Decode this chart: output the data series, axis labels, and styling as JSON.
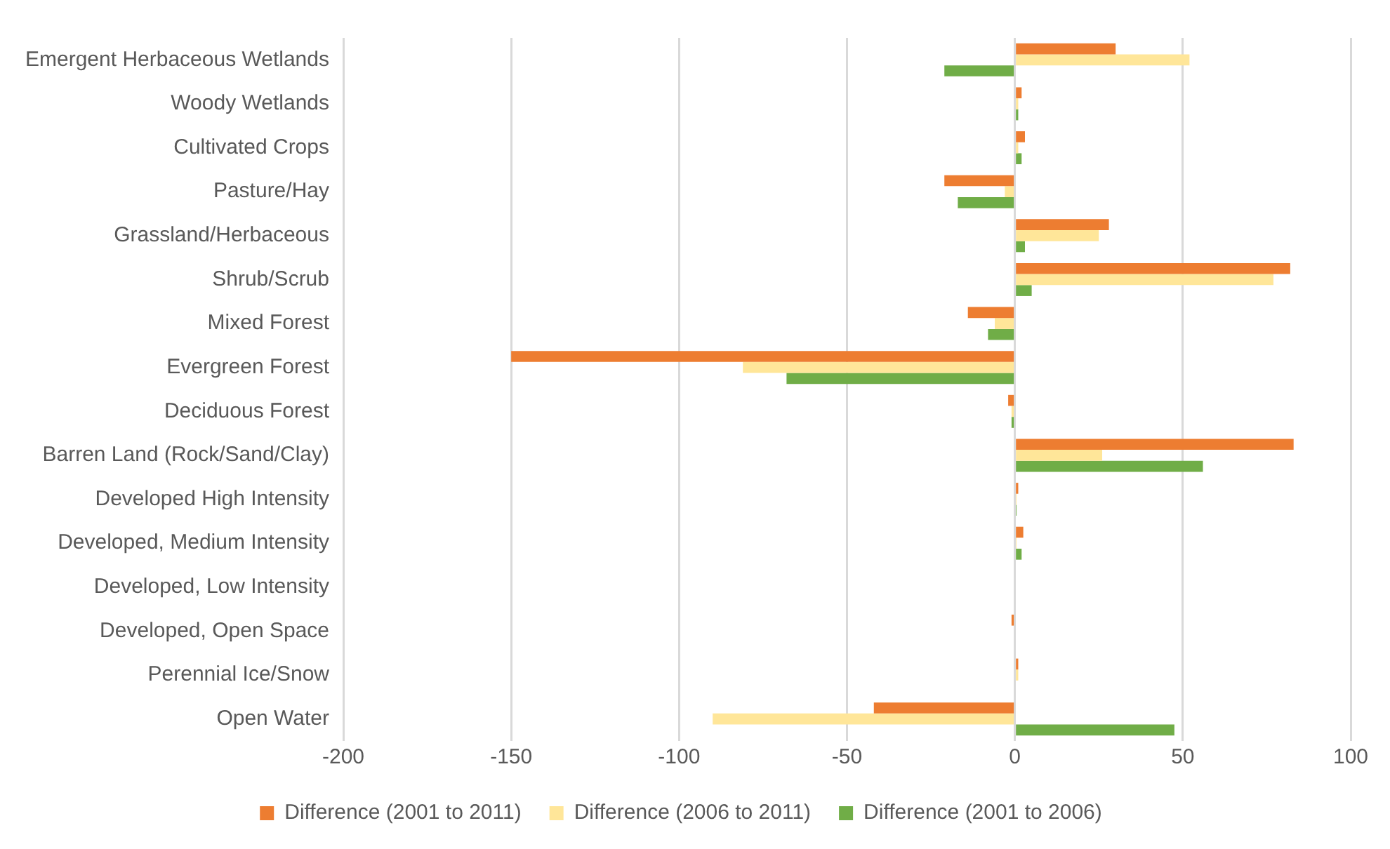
{
  "chart_data": {
    "type": "bar",
    "orientation": "horizontal",
    "categories": [
      "Emergent Herbaceous Wetlands",
      "Woody Wetlands",
      "Cultivated Crops",
      "Pasture/Hay",
      "Grassland/Herbaceous",
      "Shrub/Scrub",
      "Mixed Forest",
      "Evergreen Forest",
      "Deciduous Forest",
      "Barren Land (Rock/Sand/Clay)",
      "Developed High Intensity",
      "Developed, Medium Intensity",
      "Developed, Low Intensity",
      "Developed, Open Space",
      "Perennial Ice/Snow",
      "Open Water"
    ],
    "series": [
      {
        "name": "Difference (2001 to 2011)",
        "color": "#ed7d31",
        "values": [
          30,
          2,
          3,
          -21,
          28,
          82,
          -14,
          -150,
          -2,
          83,
          1,
          2.5,
          0,
          -1,
          1,
          -42
        ]
      },
      {
        "name": "Difference (2006 to 2011)",
        "color": "#ffe699",
        "values": [
          52,
          1,
          1,
          -3,
          25,
          77,
          -6,
          -81,
          -1,
          26,
          0.5,
          0.5,
          0,
          0,
          1,
          -90
        ]
      },
      {
        "name": "Difference (2001 to 2006)",
        "color": "#70ad47",
        "values": [
          -21,
          1,
          2,
          -17,
          3,
          5,
          -8,
          -68,
          -1,
          56,
          0.5,
          2,
          0,
          0,
          0,
          47.5
        ]
      }
    ],
    "xlim": [
      -200,
      100
    ],
    "xticks": [
      -200,
      -150,
      -100,
      -50,
      0,
      50,
      100
    ],
    "grid": "x",
    "legend": "bottom"
  }
}
